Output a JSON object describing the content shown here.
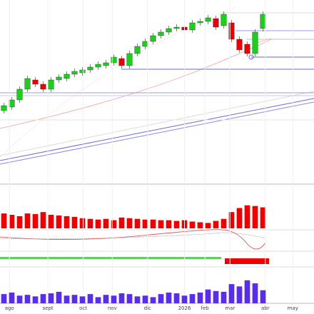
{
  "chart_data": [
    {
      "type": "candlestick",
      "x": [
        0,
        1,
        2,
        3,
        4,
        5,
        6,
        7,
        8,
        9,
        10,
        11,
        12,
        13,
        14,
        15,
        16,
        17,
        18,
        19,
        20,
        21,
        22,
        23,
        24,
        25,
        26,
        27,
        28,
        29,
        30,
        31,
        32,
        33
      ],
      "open": [
        105,
        110,
        120,
        135,
        148,
        142,
        135,
        148,
        150,
        156,
        158,
        162,
        166,
        168,
        172,
        178,
        168,
        185,
        195,
        202,
        210,
        215,
        220,
        222,
        218,
        228,
        230,
        234,
        224,
        228,
        205,
        198,
        185,
        220
      ],
      "high": [
        116,
        124,
        139,
        154,
        152,
        146,
        152,
        156,
        160,
        164,
        166,
        170,
        174,
        176,
        184,
        182,
        189,
        199,
        206,
        214,
        219,
        224,
        226,
        226,
        232,
        234,
        239,
        238,
        244,
        232,
        209,
        202,
        219,
        244
      ],
      "low": [
        101,
        106,
        116,
        131,
        138,
        131,
        131,
        144,
        146,
        152,
        154,
        158,
        162,
        164,
        168,
        164,
        164,
        181,
        191,
        198,
        206,
        211,
        216,
        214,
        214,
        224,
        226,
        218,
        220,
        201,
        186,
        181,
        181,
        216
      ],
      "close": [
        112,
        120,
        135,
        150,
        142,
        135,
        148,
        152,
        156,
        160,
        162,
        166,
        170,
        172,
        180,
        168,
        185,
        195,
        202,
        210,
        215,
        220,
        222,
        218,
        228,
        230,
        235,
        222,
        240,
        205,
        190,
        185,
        215,
        240
      ],
      "up_color": "#1fcc1f",
      "down_color": "#ee0000",
      "xlim": [
        -0.5,
        39.5
      ],
      "ylim": [
        0,
        260
      ]
    },
    {
      "type": "bar",
      "x": [
        0,
        1,
        2,
        3,
        4,
        5,
        6,
        7,
        8,
        9,
        10,
        11,
        12,
        13,
        14,
        15,
        16,
        17,
        18,
        19,
        20,
        21,
        22,
        23,
        24,
        25,
        26,
        27,
        28,
        29,
        30,
        31,
        32,
        33
      ],
      "values": [
        22,
        20,
        18,
        22,
        21,
        24,
        20,
        19,
        18,
        17,
        15,
        14,
        13,
        14,
        12,
        16,
        15,
        14,
        13,
        13,
        12,
        12,
        11,
        12,
        10,
        9,
        8,
        11,
        14,
        24,
        30,
        34,
        33,
        31
      ],
      "color": "#ee0000",
      "xlim": [
        -0.5,
        39.5
      ],
      "ylim": [
        0,
        40
      ]
    },
    {
      "type": "bar",
      "x": [
        0,
        1,
        2,
        3,
        4,
        5,
        6,
        7,
        8,
        9,
        10,
        11,
        12,
        13,
        14,
        15,
        16,
        17,
        18,
        19,
        20,
        21,
        22,
        23,
        24,
        25,
        26,
        27,
        28,
        29,
        30,
        31,
        32,
        33
      ],
      "values": [
        12,
        14,
        10,
        11,
        9,
        12,
        13,
        15,
        10,
        11,
        9,
        12,
        8,
        11,
        10,
        13,
        12,
        9,
        10,
        8,
        12,
        14,
        13,
        10,
        12,
        14,
        18,
        16,
        15,
        25,
        22,
        30,
        26,
        17
      ],
      "color": "#5a2de8",
      "xlim": [
        -0.5,
        39.5
      ],
      "ylim": [
        0,
        40
      ],
      "xticks": [
        {
          "value": 0.7,
          "label": "ago"
        },
        {
          "value": 5.6,
          "label": "sept"
        },
        {
          "value": 10.1,
          "label": "oct"
        },
        {
          "value": 13.8,
          "label": "nov"
        },
        {
          "value": 18.3,
          "label": "dic"
        },
        {
          "value": 23,
          "label": "2026"
        },
        {
          "value": 25.6,
          "label": "feb"
        },
        {
          "value": 28.8,
          "label": "mar"
        },
        {
          "value": 33.3,
          "label": "abr"
        },
        {
          "value": 36.8,
          "label": "may"
        }
      ]
    }
  ]
}
